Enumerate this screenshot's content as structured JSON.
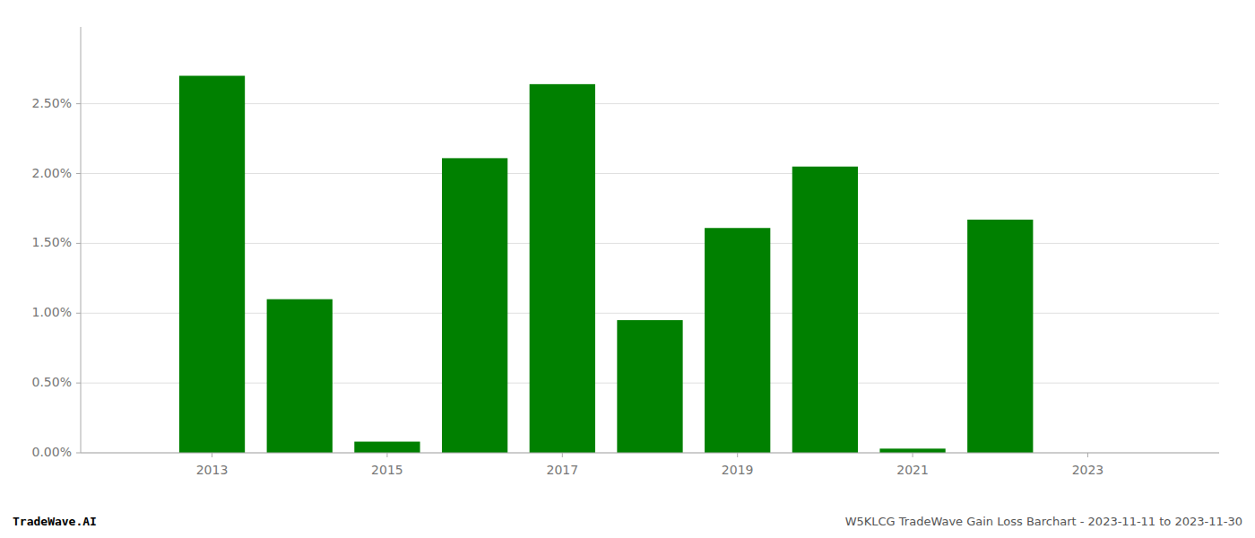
{
  "chart_data": {
    "type": "bar",
    "x": [
      2013,
      2014,
      2015,
      2016,
      2017,
      2018,
      2019,
      2020,
      2021,
      2022,
      2023
    ],
    "values": [
      0.027,
      0.011,
      0.0008,
      0.0211,
      0.0264,
      0.0095,
      0.0161,
      0.0205,
      0.0003,
      0.0167,
      0.0
    ],
    "color": "#008000",
    "xlim": [
      2011.5,
      2024.5
    ],
    "xticks": [
      2013,
      2015,
      2017,
      2019,
      2021,
      2023
    ],
    "ylim": [
      0,
      0.0305
    ],
    "yticks": [
      {
        "value": 0.0,
        "label": "0.00%"
      },
      {
        "value": 0.005,
        "label": "0.50%"
      },
      {
        "value": 0.01,
        "label": "1.00%"
      },
      {
        "value": 0.015,
        "label": "1.50%"
      },
      {
        "value": 0.02,
        "label": "2.00%"
      },
      {
        "value": 0.025,
        "label": "2.50%"
      }
    ],
    "grid": true,
    "annotations": [
      "TradeWave.AI",
      "W5KLCG TradeWave Gain Loss Barchart - 2023-11-11 to 2023-11-30"
    ]
  }
}
